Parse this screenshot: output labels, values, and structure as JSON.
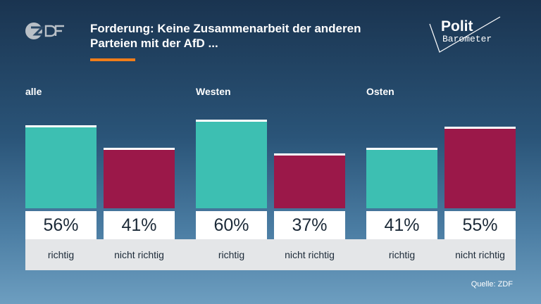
{
  "header": {
    "title_line1": "Forderung: Keine Zusammenarbeit der anderen",
    "title_line2": "Parteien mit der AfD ..."
  },
  "brand": {
    "broadcaster": "ZDF",
    "show_line1": "Polit",
    "show_line2": "Barometer"
  },
  "source": "Quelle: ZDF",
  "colors": {
    "richtig": "#3dbfb2",
    "nicht_richtig": "#9b1849",
    "accent": "#f07d1a"
  },
  "chart_data": {
    "type": "bar",
    "groups": [
      {
        "label": "alle",
        "bars": [
          {
            "category": "richtig",
            "value": 56,
            "value_label": "56%"
          },
          {
            "category": "nicht richtig",
            "value": 41,
            "value_label": "41%"
          }
        ]
      },
      {
        "label": "Westen",
        "bars": [
          {
            "category": "richtig",
            "value": 60,
            "value_label": "60%"
          },
          {
            "category": "nicht richtig",
            "value": 37,
            "value_label": "37%"
          }
        ]
      },
      {
        "label": "Osten",
        "bars": [
          {
            "category": "richtig",
            "value": 41,
            "value_label": "41%"
          },
          {
            "category": "nicht richtig",
            "value": 55,
            "value_label": "55%"
          }
        ]
      }
    ],
    "ylim": [
      0,
      100
    ],
    "unit": "%"
  }
}
